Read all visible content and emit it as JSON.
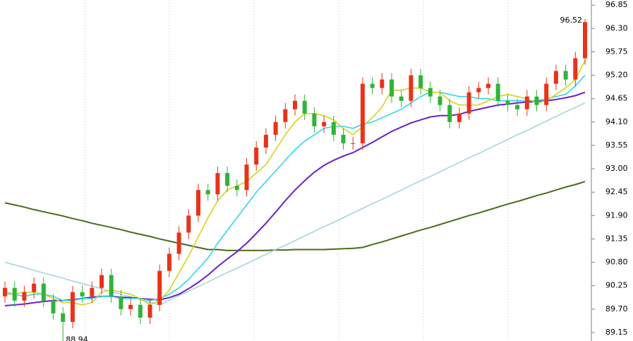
{
  "chart_data": {
    "type": "candlestick",
    "up_color": "#e8321a",
    "down_color": "#2fb33a",
    "ylim": [
      88.95,
      96.97
    ],
    "yticks": [
      {
        "value": 89.15,
        "label": "89.15"
      },
      {
        "value": 89.7,
        "label": "89.70"
      },
      {
        "value": 90.25,
        "label": "90.25"
      },
      {
        "value": 90.8,
        "label": "90.80"
      },
      {
        "value": 91.35,
        "label": "91.35"
      },
      {
        "value": 91.9,
        "label": "91.90"
      },
      {
        "value": 92.45,
        "label": "92.45"
      },
      {
        "value": 93,
        "label": "93.00"
      },
      {
        "value": 93.55,
        "label": "93.55"
      },
      {
        "value": 94.1,
        "label": "94.10"
      },
      {
        "value": 94.65,
        "label": "94.65"
      },
      {
        "value": 95.2,
        "label": "95.20"
      },
      {
        "value": 95.75,
        "label": "95.75"
      },
      {
        "value": 96.3,
        "label": "96.30"
      },
      {
        "value": 96.85,
        "label": "96.85"
      }
    ],
    "open": [
      90.0,
      90.2,
      89.9,
      90.1,
      90.3,
      89.9,
      89.6,
      89.4,
      90.1,
      90.0,
      90.2,
      90.5,
      90.0,
      89.7,
      89.8,
      89.5,
      89.8,
      90.6,
      91.0,
      91.5,
      91.9,
      92.5,
      92.4,
      92.9,
      92.6,
      92.5,
      93.1,
      93.5,
      93.8,
      94.1,
      94.4,
      94.6,
      94.3,
      94.0,
      94.1,
      93.8,
      93.6,
      93.6,
      95.0,
      94.9,
      95.1,
      94.7,
      94.6,
      95.2,
      94.9,
      94.7,
      94.5,
      94.1,
      94.3,
      94.8,
      94.9,
      95.0,
      94.6,
      94.5,
      94.4,
      94.7,
      94.5,
      95.0,
      95.3,
      95.1,
      95.6
    ],
    "high": [
      90.35,
      90.35,
      90.25,
      90.45,
      90.45,
      90.05,
      89.75,
      90.25,
      90.25,
      90.35,
      90.65,
      90.65,
      90.15,
      89.95,
      89.95,
      89.95,
      90.75,
      91.15,
      91.65,
      92.05,
      92.65,
      92.65,
      93.05,
      93.05,
      92.75,
      93.25,
      93.65,
      93.95,
      94.25,
      94.55,
      94.75,
      94.75,
      94.45,
      94.25,
      94.25,
      93.95,
      93.75,
      95.15,
      95.15,
      95.25,
      95.25,
      94.85,
      95.35,
      95.35,
      95.05,
      94.85,
      94.65,
      94.45,
      94.95,
      95.05,
      95.15,
      95.15,
      94.75,
      94.65,
      94.85,
      94.85,
      95.15,
      95.45,
      95.45,
      95.75,
      96.52
    ],
    "low": [
      89.85,
      89.75,
      89.75,
      89.95,
      89.75,
      89.45,
      88.94,
      89.25,
      89.85,
      89.85,
      90.05,
      89.85,
      89.55,
      89.55,
      89.35,
      89.35,
      89.65,
      90.45,
      90.85,
      91.35,
      91.75,
      92.25,
      92.25,
      92.45,
      92.35,
      92.35,
      92.95,
      93.35,
      93.65,
      93.95,
      94.25,
      94.15,
      93.85,
      93.85,
      93.65,
      93.45,
      93.45,
      93.45,
      94.75,
      94.75,
      94.55,
      94.45,
      94.45,
      94.75,
      94.55,
      94.35,
      93.95,
      93.95,
      94.15,
      94.65,
      94.75,
      94.45,
      94.35,
      94.25,
      94.25,
      94.35,
      94.35,
      94.85,
      94.95,
      94.95,
      95.45
    ],
    "close": [
      90.2,
      89.9,
      90.1,
      90.3,
      89.9,
      89.6,
      89.4,
      90.1,
      90.0,
      90.2,
      90.5,
      90.0,
      89.7,
      89.8,
      89.5,
      89.8,
      90.6,
      91.0,
      91.5,
      91.9,
      92.5,
      92.4,
      92.9,
      92.6,
      92.5,
      93.1,
      93.5,
      93.8,
      94.1,
      94.4,
      94.6,
      94.3,
      94.0,
      94.1,
      93.8,
      93.6,
      93.6,
      95.0,
      94.9,
      95.1,
      94.7,
      94.6,
      95.2,
      94.9,
      94.7,
      94.5,
      94.1,
      94.3,
      94.8,
      94.9,
      95.0,
      94.6,
      94.5,
      94.4,
      94.7,
      94.5,
      95.0,
      95.3,
      95.1,
      95.6,
      96.45
    ],
    "series": [
      {
        "color": "#4a6b1a",
        "values": [
          92.2,
          92.15,
          92.1,
          92.04,
          91.99,
          91.94,
          91.89,
          91.83,
          91.78,
          91.72,
          91.67,
          91.62,
          91.57,
          91.51,
          91.46,
          91.41,
          91.35,
          91.3,
          91.25,
          91.2,
          91.15,
          91.1,
          91.1,
          91.08,
          91.08,
          91.08,
          91.08,
          91.08,
          91.09,
          91.09,
          91.1,
          91.1,
          91.1,
          91.1,
          91.11,
          91.12,
          91.13,
          91.15,
          91.22,
          91.28,
          91.35,
          91.42,
          91.49,
          91.56,
          91.62,
          91.69,
          91.76,
          91.83,
          91.9,
          91.96,
          92.03,
          92.1,
          92.17,
          92.23,
          92.3,
          92.37,
          92.43,
          92.5,
          92.57,
          92.63,
          92.7
        ]
      },
      {
        "color": "#a8d4dc",
        "values": [
          90.8,
          90.74,
          90.68,
          90.61,
          90.55,
          90.49,
          90.43,
          90.36,
          90.3,
          90.24,
          90.18,
          90.11,
          90.05,
          89.99,
          89.93,
          89.86,
          89.8,
          89.91,
          90.02,
          90.12,
          90.23,
          90.34,
          90.45,
          90.56,
          90.66,
          90.77,
          90.88,
          90.99,
          91.1,
          91.2,
          91.31,
          91.42,
          91.53,
          91.64,
          91.74,
          91.85,
          91.96,
          92.07,
          92.18,
          92.28,
          92.39,
          92.5,
          92.61,
          92.72,
          92.82,
          92.93,
          93.04,
          93.15,
          93.26,
          93.36,
          93.47,
          93.58,
          93.69,
          93.8,
          93.9,
          94.01,
          94.12,
          94.23,
          94.34,
          94.44,
          94.55
        ]
      },
      {
        "color": "#6a1fd0",
        "values": [
          89.78,
          89.8,
          89.82,
          89.85,
          89.88,
          89.9,
          89.9,
          89.92,
          89.95,
          89.98,
          90.0,
          90.0,
          89.98,
          89.97,
          89.95,
          89.93,
          89.92,
          89.97,
          90.05,
          90.18,
          90.33,
          90.5,
          90.7,
          90.88,
          91.05,
          91.25,
          91.48,
          91.72,
          91.98,
          92.25,
          92.5,
          92.72,
          92.92,
          93.08,
          93.2,
          93.3,
          93.38,
          93.5,
          93.62,
          93.75,
          93.88,
          93.98,
          94.08,
          94.15,
          94.22,
          94.25,
          94.25,
          94.28,
          94.35,
          94.4,
          94.45,
          94.5,
          94.52,
          94.55,
          94.57,
          94.58,
          94.6,
          94.63,
          94.67,
          94.72,
          94.8
        ]
      },
      {
        "color": "#33d6e6",
        "values": [
          90.1,
          90.05,
          90.0,
          90.05,
          90.05,
          90.0,
          89.9,
          89.9,
          89.95,
          89.95,
          90.0,
          90.0,
          89.95,
          89.95,
          89.95,
          89.9,
          89.95,
          90.05,
          90.2,
          90.4,
          90.65,
          90.9,
          91.25,
          91.55,
          91.85,
          92.15,
          92.45,
          92.7,
          92.95,
          93.2,
          93.45,
          93.65,
          93.8,
          93.95,
          94.0,
          94.0,
          93.95,
          94.05,
          94.1,
          94.2,
          94.3,
          94.4,
          94.55,
          94.7,
          94.8,
          94.8,
          94.75,
          94.7,
          94.7,
          94.65,
          94.65,
          94.6,
          94.6,
          94.6,
          94.6,
          94.6,
          94.65,
          94.7,
          94.75,
          94.95,
          95.2
        ]
      },
      {
        "color": "#d8d21a",
        "values": [
          90.05,
          90.05,
          90.1,
          90.1,
          90.05,
          89.95,
          89.85,
          89.85,
          89.8,
          89.85,
          90.1,
          90.15,
          90.1,
          90.05,
          89.95,
          89.8,
          89.9,
          90.15,
          90.55,
          90.95,
          91.4,
          91.85,
          92.25,
          92.5,
          92.6,
          92.7,
          92.9,
          93.1,
          93.45,
          93.8,
          94.1,
          94.3,
          94.3,
          94.25,
          94.15,
          93.95,
          93.8,
          94.0,
          94.2,
          94.45,
          94.85,
          94.85,
          94.9,
          94.9,
          94.8,
          94.8,
          94.6,
          94.5,
          94.5,
          94.5,
          94.6,
          94.7,
          94.75,
          94.7,
          94.65,
          94.55,
          94.6,
          94.75,
          94.9,
          95.1,
          95.55
        ]
      }
    ],
    "annotations": [
      {
        "label": "96.52",
        "value": 96.52
      },
      {
        "label": "88.94",
        "value": 88.94
      }
    ]
  }
}
